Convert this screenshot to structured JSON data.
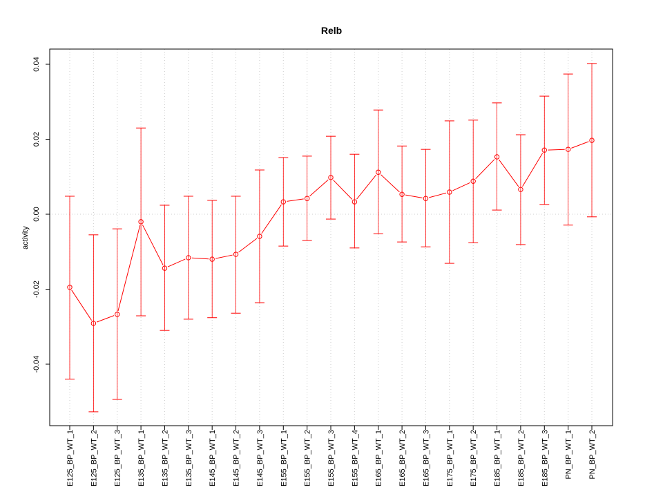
{
  "chart_data": {
    "type": "line",
    "title": "Relb",
    "xlabel": "",
    "ylabel": "activity",
    "ylim": [
      -0.0565,
      0.0438
    ],
    "yticks": [
      -0.04,
      -0.02,
      0.0,
      0.02,
      0.04
    ],
    "ytick_labels": [
      "-0.04",
      "-0.02",
      "0.00",
      "0.02",
      "0.04"
    ],
    "grid": true,
    "color": "#ff0000",
    "categories": [
      "E125_BP_WT_1",
      "E125_BP_WT_2",
      "E125_BP_WT_3",
      "E135_BP_WT_1",
      "E135_BP_WT_2",
      "E135_BP_WT_3",
      "E145_BP_WT_1",
      "E145_BP_WT_2",
      "E145_BP_WT_3",
      "E155_BP_WT_1",
      "E155_BP_WT_2",
      "E155_BP_WT_3",
      "E155_BP_WT_4",
      "E165_BP_WT_1",
      "E165_BP_WT_2",
      "E165_BP_WT_3",
      "E175_BP_WT_1",
      "E175_BP_WT_2",
      "E185_BP_WT_1",
      "E185_BP_WT_2",
      "E185_BP_WT_3",
      "PN_BP_WT_1",
      "PN_BP_WT_2"
    ],
    "values": [
      -0.0195,
      -0.0291,
      -0.0267,
      -0.002,
      -0.0144,
      -0.0116,
      -0.012,
      -0.0107,
      -0.0059,
      0.0033,
      0.0042,
      0.0098,
      0.0033,
      0.0112,
      0.0053,
      0.0042,
      0.0059,
      0.0088,
      0.0153,
      0.0066,
      0.0171,
      0.0173,
      0.0197
    ],
    "upper": [
      0.0048,
      -0.0055,
      -0.0039,
      0.023,
      0.0024,
      0.0048,
      0.0037,
      0.0048,
      0.0118,
      0.0151,
      0.0155,
      0.0208,
      0.016,
      0.0278,
      0.0182,
      0.0173,
      0.0249,
      0.0251,
      0.0297,
      0.0212,
      0.0315,
      0.0374,
      0.0402
    ],
    "lower": [
      -0.044,
      -0.0527,
      -0.0494,
      -0.0271,
      -0.031,
      -0.028,
      -0.0276,
      -0.0264,
      -0.0236,
      -0.0085,
      -0.007,
      -0.0013,
      -0.009,
      -0.0052,
      -0.0074,
      -0.0087,
      -0.0131,
      -0.0076,
      0.0011,
      -0.0081,
      0.0026,
      -0.0029,
      -0.0007
    ]
  }
}
